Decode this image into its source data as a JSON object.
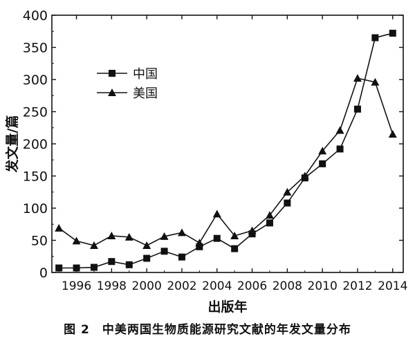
{
  "chart_data": {
    "type": "line",
    "caption": "图 2　中美两国生物质能源研究文献的年发文量分布",
    "xlabel": "出版年",
    "ylabel": "发文量/篇",
    "xlim": [
      1994.6,
      2014.6
    ],
    "ylim": [
      0,
      400
    ],
    "xticks": [
      1996,
      1998,
      2000,
      2002,
      2004,
      2006,
      2008,
      2010,
      2012,
      2014
    ],
    "yticks": [
      0,
      50,
      100,
      150,
      200,
      250,
      300,
      350,
      400
    ],
    "grid": false,
    "legend_position": "upper-left",
    "x": [
      1995,
      1996,
      1997,
      1998,
      1999,
      2000,
      2001,
      2002,
      2003,
      2004,
      2005,
      2006,
      2007,
      2008,
      2009,
      2010,
      2011,
      2012,
      2013,
      2014
    ],
    "series": [
      {
        "name": "中国",
        "marker": "square",
        "values": [
          7,
          7,
          8,
          17,
          12,
          22,
          33,
          24,
          40,
          53,
          37,
          60,
          77,
          108,
          147,
          169,
          192,
          254,
          365,
          372
        ]
      },
      {
        "name": "美国",
        "marker": "triangle",
        "values": [
          69,
          49,
          42,
          57,
          55,
          42,
          56,
          62,
          46,
          91,
          57,
          65,
          89,
          125,
          150,
          189,
          221,
          302,
          296,
          215
        ]
      }
    ]
  },
  "colors": {
    "ink": "#111111"
  }
}
